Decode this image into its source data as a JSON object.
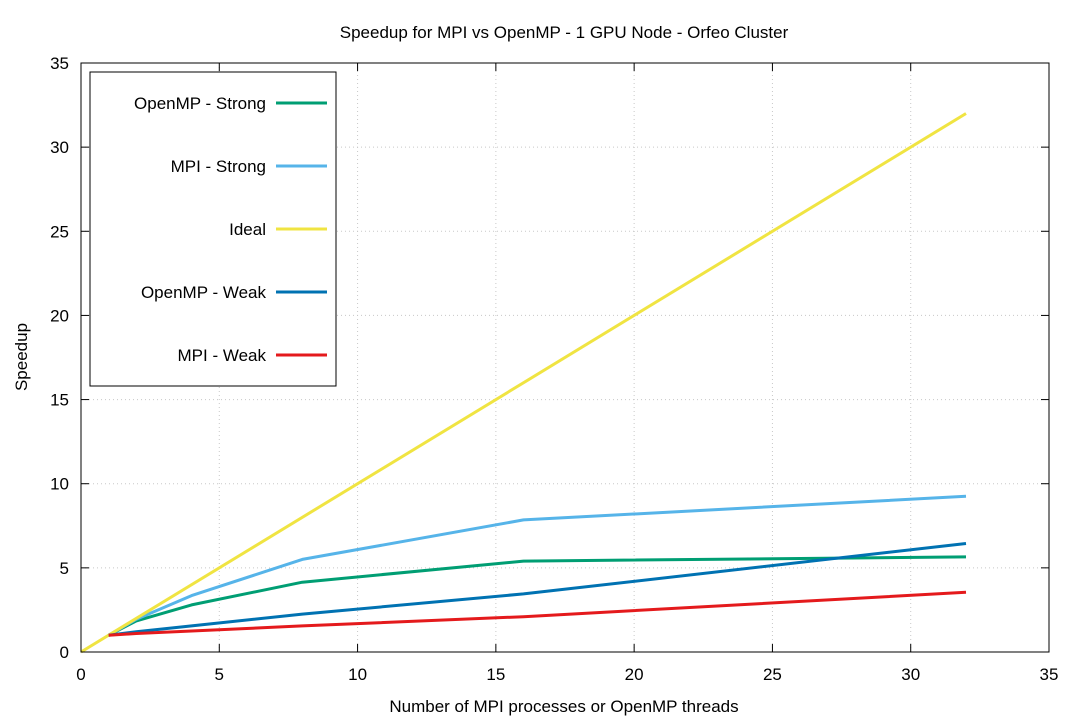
{
  "chart_data": {
    "type": "line",
    "title": "Speedup for MPI vs OpenMP - 1 GPU Node - Orfeo Cluster",
    "xlabel": "Number of MPI processes or OpenMP threads",
    "ylabel": "Speedup",
    "xlim": [
      0,
      35
    ],
    "ylim": [
      0,
      35
    ],
    "xticks": [
      0,
      5,
      10,
      15,
      20,
      25,
      30,
      35
    ],
    "yticks": [
      0,
      5,
      10,
      15,
      20,
      25,
      30,
      35
    ],
    "grid": true,
    "legend_position": "top-left",
    "series": [
      {
        "name": "OpenMP - Strong",
        "color": "#009e73",
        "x": [
          1,
          2,
          4,
          8,
          16,
          32
        ],
        "y": [
          1.0,
          1.85,
          2.8,
          4.15,
          5.4,
          5.65
        ]
      },
      {
        "name": "MPI - Strong",
        "color": "#56b4e9",
        "x": [
          1,
          2,
          4,
          8,
          16,
          32
        ],
        "y": [
          1.0,
          1.95,
          3.35,
          5.5,
          7.85,
          9.25
        ]
      },
      {
        "name": "Ideal",
        "color": "#f0e442",
        "x": [
          0,
          32
        ],
        "y": [
          0,
          32
        ]
      },
      {
        "name": "OpenMP - Weak",
        "color": "#0072b2",
        "x": [
          1,
          2,
          4,
          8,
          16,
          32
        ],
        "y": [
          1.0,
          1.2,
          1.55,
          2.25,
          3.45,
          6.45
        ]
      },
      {
        "name": "MPI - Weak",
        "color": "#e41a1c",
        "x": [
          1,
          2,
          4,
          8,
          16,
          32
        ],
        "y": [
          1.0,
          1.1,
          1.25,
          1.55,
          2.1,
          3.55
        ]
      }
    ]
  }
}
